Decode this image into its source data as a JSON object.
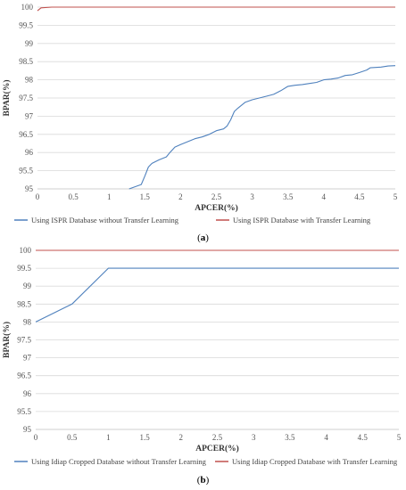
{
  "captions": [
    "(a)",
    "(b)"
  ],
  "colors": {
    "series_blue": "#4f81bd",
    "series_red": "#c0504d",
    "grid": "#d9d9d9",
    "axis": "#bfbfbf"
  },
  "chart_data": [
    {
      "type": "line",
      "xlabel": "APCER(%)",
      "ylabel": "BPAR(%)",
      "xlim": [
        0,
        5
      ],
      "ylim": [
        95,
        100
      ],
      "xticks": [
        "0",
        "0.5",
        "1",
        "1.5",
        "2",
        "2.5",
        "3",
        "3.5",
        "4",
        "4.5",
        "5"
      ],
      "yticks": [
        "95",
        "95.5",
        "96",
        "96.5",
        "97",
        "97.5",
        "98",
        "98.5",
        "99",
        "99.5",
        "100"
      ],
      "grid": true,
      "legend_position": "bottom",
      "series": [
        {
          "name": "Using ISPR Database without Transfer Learning",
          "color": "#4f81bd",
          "points": [
            [
              1.28,
              95.0
            ],
            [
              1.35,
              95.05
            ],
            [
              1.45,
              95.12
            ],
            [
              1.5,
              95.35
            ],
            [
              1.55,
              95.6
            ],
            [
              1.6,
              95.7
            ],
            [
              1.7,
              95.8
            ],
            [
              1.8,
              95.88
            ],
            [
              1.85,
              96.0
            ],
            [
              1.92,
              96.15
            ],
            [
              2.0,
              96.22
            ],
            [
              2.1,
              96.3
            ],
            [
              2.2,
              96.38
            ],
            [
              2.3,
              96.43
            ],
            [
              2.4,
              96.5
            ],
            [
              2.5,
              96.6
            ],
            [
              2.6,
              96.65
            ],
            [
              2.65,
              96.73
            ],
            [
              2.7,
              96.9
            ],
            [
              2.75,
              97.13
            ],
            [
              2.8,
              97.22
            ],
            [
              2.9,
              97.38
            ],
            [
              3.0,
              97.45
            ],
            [
              3.1,
              97.5
            ],
            [
              3.2,
              97.55
            ],
            [
              3.3,
              97.6
            ],
            [
              3.4,
              97.7
            ],
            [
              3.5,
              97.82
            ],
            [
              3.6,
              97.85
            ],
            [
              3.7,
              97.87
            ],
            [
              3.8,
              97.9
            ],
            [
              3.9,
              97.93
            ],
            [
              4.0,
              98.0
            ],
            [
              4.1,
              98.02
            ],
            [
              4.2,
              98.05
            ],
            [
              4.3,
              98.12
            ],
            [
              4.4,
              98.14
            ],
            [
              4.5,
              98.2
            ],
            [
              4.6,
              98.27
            ],
            [
              4.65,
              98.33
            ],
            [
              4.8,
              98.35
            ],
            [
              4.9,
              98.38
            ],
            [
              5.0,
              98.39
            ]
          ]
        },
        {
          "name": "Using ISPR Database with Transfer Learning",
          "color": "#c0504d",
          "points": [
            [
              0,
              99.9
            ],
            [
              0.05,
              99.98
            ],
            [
              0.2,
              100.0
            ],
            [
              5.0,
              100.0
            ]
          ]
        }
      ]
    },
    {
      "type": "line",
      "xlabel": "APCER(%)",
      "ylabel": "BPAR(%)",
      "xlim": [
        0,
        5
      ],
      "ylim": [
        95,
        100
      ],
      "xticks": [
        "0",
        "0.5",
        "1",
        "1.5",
        "2",
        "2.5",
        "3",
        "3.5",
        "4",
        "4.5",
        "5"
      ],
      "yticks": [
        "95",
        "95.5",
        "96",
        "96.5",
        "97",
        "97.5",
        "98",
        "98.5",
        "99",
        "99.5",
        "100"
      ],
      "grid": true,
      "legend_position": "bottom",
      "series": [
        {
          "name": "Using Idiap Cropped Database without Transfer Learning",
          "color": "#4f81bd",
          "points": [
            [
              0,
              98.0
            ],
            [
              0.1,
              98.1
            ],
            [
              0.5,
              98.5
            ],
            [
              1.0,
              99.5
            ],
            [
              5.0,
              99.5
            ]
          ]
        },
        {
          "name": "Using Idiap Cropped Database with Transfer Learning",
          "color": "#c0504d",
          "points": [
            [
              0,
              100.0
            ],
            [
              5.0,
              100.0
            ]
          ]
        }
      ]
    }
  ]
}
